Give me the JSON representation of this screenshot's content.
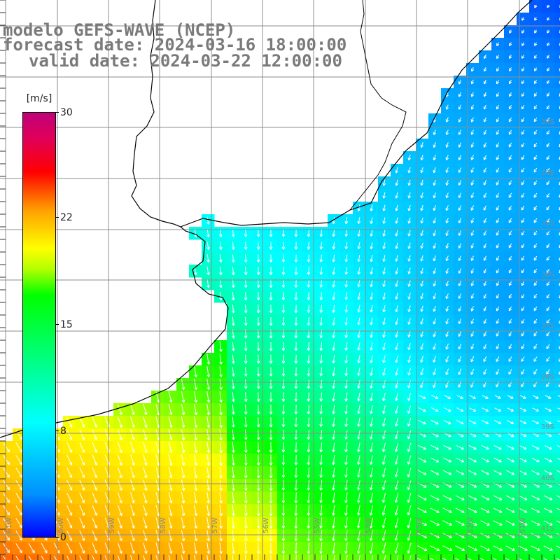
{
  "title": {
    "model": "modelo GEFS-WAVE (NCEP)",
    "forecast": "forecast date: 2024-03-16 18:00:00",
    "valid": "valid date: 2024-03-22 12:00:00"
  },
  "colorbar": {
    "unit": "m/s",
    "ticks": [
      {
        "label": "30",
        "value": 30
      },
      {
        "label": "22",
        "value": 22
      },
      {
        "label": "15",
        "value": 15
      },
      {
        "label": "8",
        "value": 8
      },
      {
        "label": "0",
        "value": 0
      }
    ],
    "colors": [
      "#0000ff",
      "#0090ff",
      "#00ffff",
      "#00ff00",
      "#ffff00",
      "#ffa000",
      "#ff0000",
      "#c0007a"
    ]
  },
  "map": {
    "lat_labels": [
      "33S",
      "34S",
      "35S",
      "36S",
      "37S",
      "38S",
      "39S",
      "40S",
      "41S"
    ],
    "lon_labels": [
      "61W",
      "60W",
      "59W",
      "58W",
      "57W",
      "56W",
      "55W",
      "54W",
      "53W",
      "52W",
      "51W"
    ],
    "land_color": "#ffffff",
    "arrow_color": "#ffffff",
    "grid_color": "#8c8c8c"
  }
}
